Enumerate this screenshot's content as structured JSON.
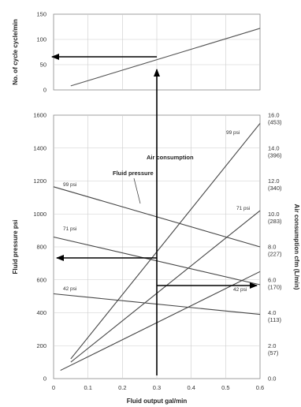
{
  "chart_data": [
    {
      "type": "line",
      "ylabel": "No. of cycle cycle/min",
      "xlim": [
        0,
        0.6
      ],
      "ylim": [
        0,
        150
      ],
      "yticks": [
        "150",
        "100",
        "50",
        "0"
      ],
      "grid": true,
      "series": [
        {
          "name": "",
          "x": [
            0.05,
            0.6
          ],
          "y": [
            8,
            122
          ]
        }
      ]
    },
    {
      "type": "line",
      "xlabel": "Fluid output gal/min",
      "ylabel": "Fluid pressure psi",
      "y2label": "Air consumption cfm (L/min)",
      "xlim": [
        0,
        0.6
      ],
      "ylim": [
        0,
        1600
      ],
      "y2lim": [
        0,
        16
      ],
      "xticks": [
        "0",
        "0.1",
        "0.2",
        "0.3",
        "0.4",
        "0.5",
        "0.6"
      ],
      "yticks": [
        "1600",
        "1400",
        "1200",
        "1000",
        "800",
        "600",
        "400",
        "200",
        "0"
      ],
      "y2ticks": [
        "16.0\n(453)",
        "14.0\n(396)",
        "12.0\n(340)",
        "10.0\n(283)",
        "8.0\n(227)",
        "6.0\n(170)",
        "4.0\n(113)",
        "2.0\n(57)",
        "0.0"
      ],
      "grid": true,
      "annotations": [
        "Fluid pressure",
        "Air consumption"
      ],
      "fluid_pressure_series": [
        {
          "name": "99 psi",
          "x": [
            0,
            0.6
          ],
          "y": [
            1165,
            800
          ]
        },
        {
          "name": "71 psi",
          "x": [
            0,
            0.6
          ],
          "y": [
            860,
            570
          ]
        },
        {
          "name": "42 psi",
          "x": [
            0,
            0.6
          ],
          "y": [
            515,
            390
          ]
        }
      ],
      "air_consumption_series": [
        {
          "name": "99 psi",
          "x": [
            0.05,
            0.6
          ],
          "y": [
            1.2,
            15.5
          ]
        },
        {
          "name": "71 psi",
          "x": [
            0.05,
            0.6
          ],
          "y": [
            1.0,
            10.2
          ]
        },
        {
          "name": "42 psi",
          "x": [
            0.02,
            0.6
          ],
          "y": [
            0.5,
            6.5
          ]
        }
      ]
    }
  ]
}
